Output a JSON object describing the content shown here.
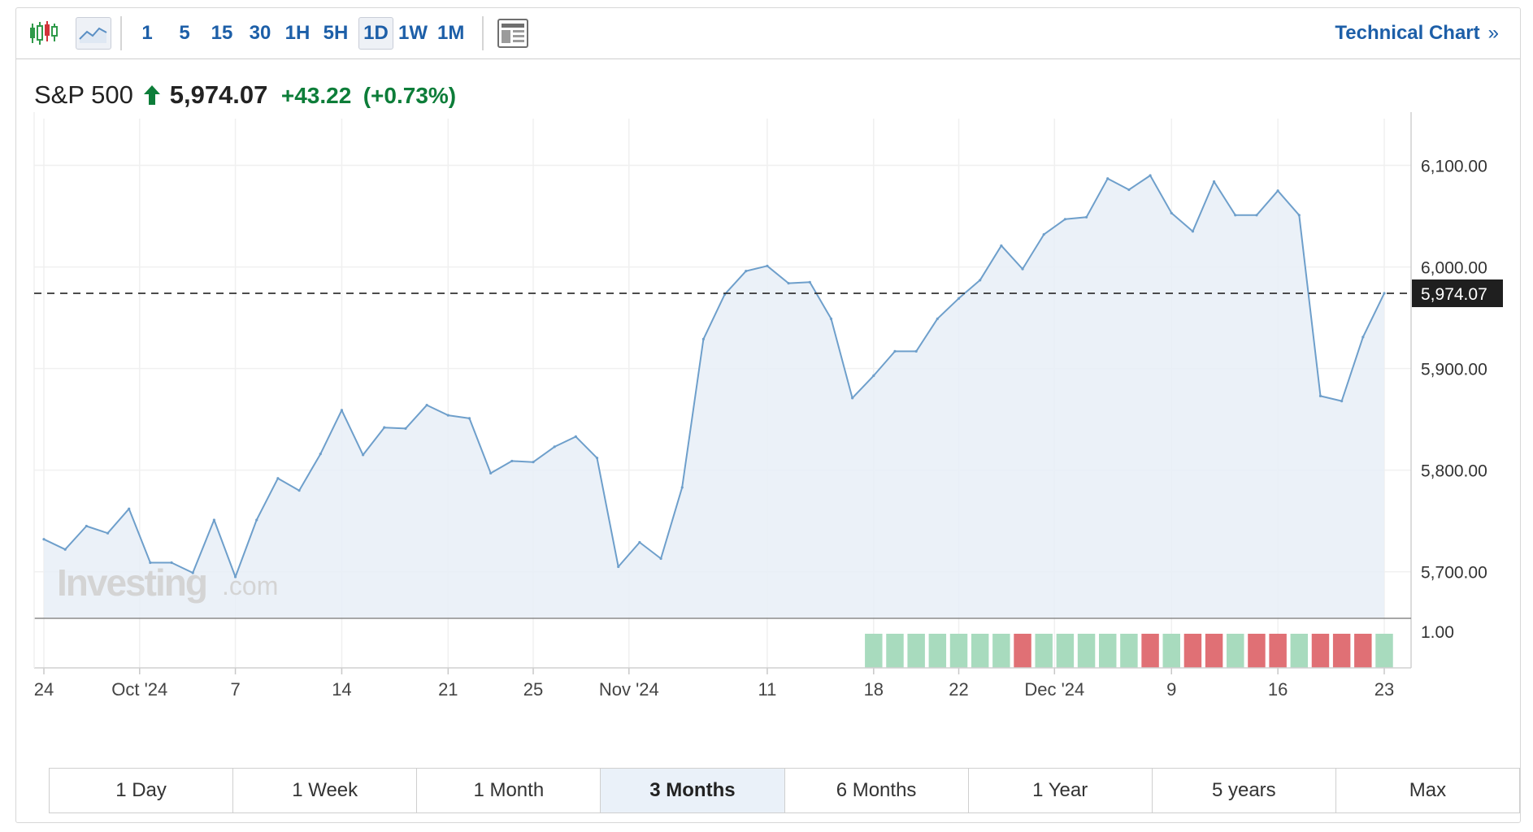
{
  "toolbar": {
    "chart_icons": [
      "candlestick-icon",
      "area-chart-icon"
    ],
    "intervals": [
      "1",
      "5",
      "15",
      "30",
      "1H",
      "5H",
      "1D",
      "1W",
      "1M"
    ],
    "selected_interval": "1D",
    "layout_icon": "layout-icon",
    "technical_link": "Technical Chart",
    "technical_chevron": "»"
  },
  "quote": {
    "name": "S&P 500",
    "direction_icon": "up-arrow-icon",
    "price": "5,974.07",
    "change": "+43.22",
    "change_pct": "(+0.73%)"
  },
  "colors": {
    "line": "#6e9fcb",
    "area": "#e7eef7",
    "up_bar": "#a8dbbe",
    "down_bar": "#e07075",
    "positive": "#0d7d39",
    "link": "#1d5fa8"
  },
  "watermark": {
    "brand": "Investing",
    "suffix": ".com"
  },
  "chart_data": {
    "type": "area",
    "title": "",
    "xlabel": "",
    "ylabel": "",
    "ylim": [
      5655,
      6130
    ],
    "y_ticks": [
      6100,
      6000,
      5900,
      5800,
      5700
    ],
    "y_tick_labels": [
      "6,100.00",
      "6,000.00",
      "5,900.00",
      "5,800.00",
      "5,700.00"
    ],
    "x_tick_labels": [
      "24",
      "Oct '24",
      "7",
      "14",
      "21",
      "25",
      "Nov '24",
      "11",
      "18",
      "22",
      "Dec '24",
      "9",
      "16",
      "23"
    ],
    "x_tick_index": [
      0,
      4.5,
      9,
      14,
      19,
      23,
      27.5,
      34,
      39,
      43,
      47.5,
      53,
      58,
      63
    ],
    "last_value_label": "5,974.07",
    "last_value": 5974.07,
    "volume_axis_label": "1.00",
    "grid": true,
    "series": [
      {
        "values": [
          5732,
          5722,
          5745,
          5738,
          5762,
          5709,
          5709,
          5699,
          5751,
          5695,
          5751,
          5792,
          5780,
          5816,
          5859,
          5815,
          5842,
          5841,
          5864,
          5854,
          5851,
          5797,
          5809,
          5808,
          5823,
          5833,
          5812,
          5705,
          5729,
          5713,
          5783,
          5929,
          5973,
          5996,
          6001,
          5984,
          5985,
          5949,
          5871,
          5893,
          5917,
          5917,
          5949,
          5969,
          5987,
          6021,
          5998,
          6032,
          6047,
          6049,
          6087,
          6076,
          6090,
          6053,
          6035,
          6084,
          6051,
          6051,
          6075,
          6051,
          5873,
          5868,
          5931,
          5974.07
        ]
      }
    ],
    "volume": {
      "start_index": 39,
      "directions": [
        "up",
        "up",
        "up",
        "up",
        "up",
        "up",
        "up",
        "down",
        "up",
        "up",
        "up",
        "up",
        "up",
        "down",
        "up",
        "down",
        "down",
        "up",
        "down",
        "down",
        "up",
        "down",
        "down",
        "down",
        "up"
      ]
    }
  },
  "range_buttons": [
    "1 Day",
    "1 Week",
    "1 Month",
    "3 Months",
    "6 Months",
    "1 Year",
    "5 years",
    "Max"
  ],
  "selected_range": "3 Months"
}
